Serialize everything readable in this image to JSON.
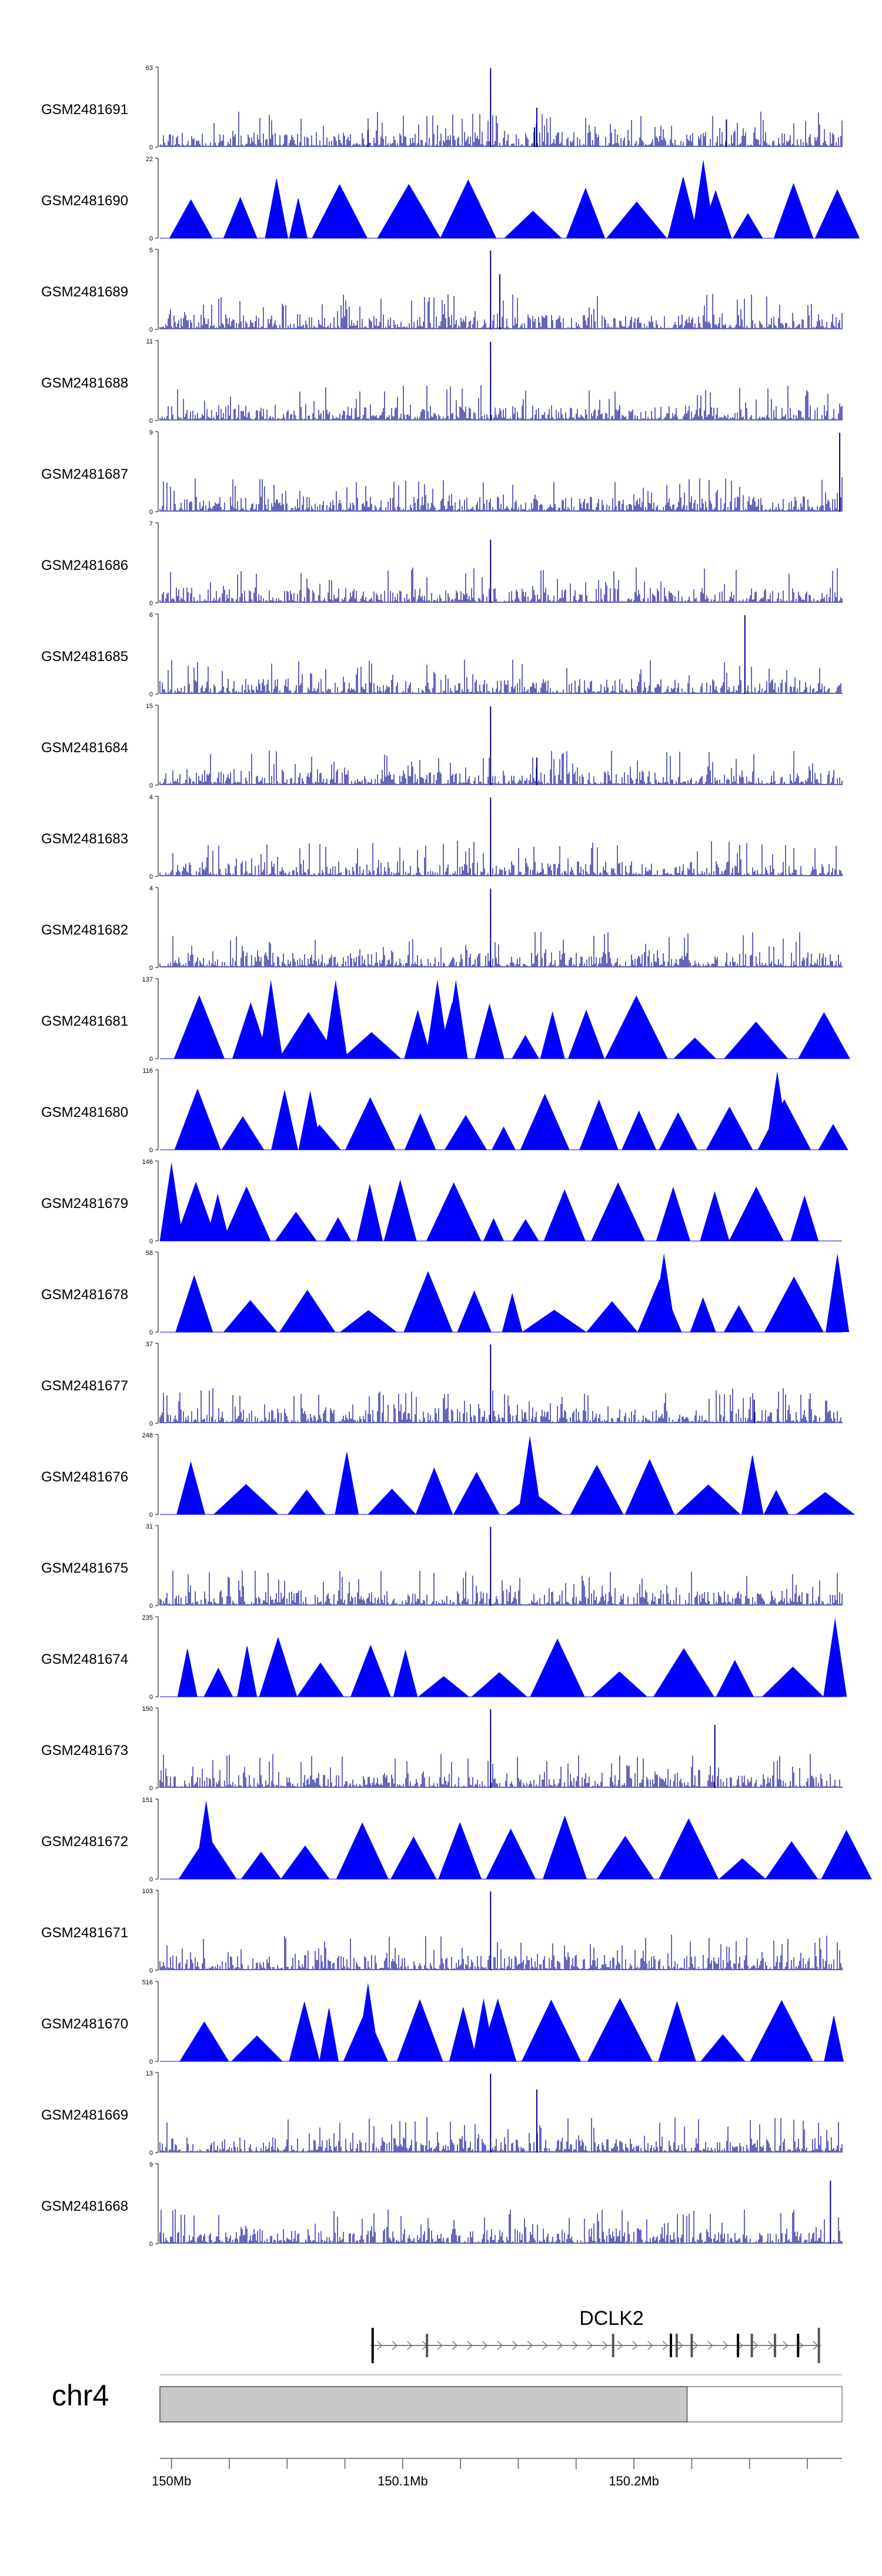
{
  "chart_data": {
    "type": "area",
    "title": "",
    "chromosome": "chr4",
    "gene": "DCLK2",
    "xlim": [
      149.97,
      150.265
    ],
    "x_ticks": [
      {
        "value": 149.975,
        "label": "150Mb"
      },
      {
        "value": 150.0,
        "label": ""
      },
      {
        "value": 150.025,
        "label": ""
      },
      {
        "value": 150.05,
        "label": ""
      },
      {
        "value": 150.075,
        "label": "150.1Mb"
      },
      {
        "value": 150.1,
        "label": ""
      },
      {
        "value": 150.125,
        "label": ""
      },
      {
        "value": 150.15,
        "label": ""
      },
      {
        "value": 150.175,
        "label": "150.2Mb"
      },
      {
        "value": 150.2,
        "label": ""
      },
      {
        "value": 150.225,
        "label": ""
      },
      {
        "value": 150.25,
        "label": ""
      }
    ],
    "ideogram": {
      "range": [
        149.97,
        150.265
      ],
      "highlight": [
        149.97,
        150.198
      ]
    },
    "gene_model": {
      "start": 150.061,
      "end": 150.256,
      "strand": "+",
      "exons": [
        150.062,
        150.0855,
        150.166,
        150.191,
        150.1935,
        150.2,
        150.22,
        150.226,
        150.236,
        150.246,
        150.255
      ]
    },
    "series": [
      {
        "name": "GSM2481691",
        "ymax": 63,
        "style": "dense",
        "peaks": [
          [
            150.113,
            1.0
          ],
          [
            150.06,
            0.22
          ],
          [
            150.133,
            0.5
          ],
          [
            150.132,
            0.25
          ],
          [
            150.215,
            0.35
          ]
        ]
      },
      {
        "name": "GSM2481690",
        "ymax": 22,
        "style": "tri",
        "peaks": [
          [
            150.205,
            1.0
          ],
          [
            150.245,
            0.6
          ]
        ]
      },
      {
        "name": "GSM2481689",
        "ymax": 5,
        "style": "dense",
        "peaks": [
          [
            150.113,
            1.0
          ],
          [
            150.117,
            0.7
          ]
        ]
      },
      {
        "name": "GSM2481688",
        "ymax": 11,
        "style": "dense",
        "peaks": [
          [
            150.113,
            1.0
          ]
        ]
      },
      {
        "name": "GSM2481687",
        "ymax": 9,
        "style": "dense",
        "peaks": [
          [
            150.264,
            1.0
          ]
        ]
      },
      {
        "name": "GSM2481686",
        "ymax": 7,
        "style": "dense",
        "peaks": [
          [
            150.113,
            0.8
          ]
        ]
      },
      {
        "name": "GSM2481685",
        "ymax": 6,
        "style": "dense",
        "peaks": [
          [
            150.223,
            1.0
          ]
        ]
      },
      {
        "name": "GSM2481684",
        "ymax": 15,
        "style": "dense",
        "peaks": [
          [
            150.113,
            1.0
          ],
          [
            150.133,
            0.35
          ]
        ]
      },
      {
        "name": "GSM2481683",
        "ymax": 4,
        "style": "dense",
        "peaks": [
          [
            150.113,
            1.0
          ]
        ]
      },
      {
        "name": "GSM2481682",
        "ymax": 4,
        "style": "dense",
        "peaks": [
          [
            150.113,
            1.0
          ]
        ]
      },
      {
        "name": "GSM2481681",
        "ymax": 137,
        "style": "tri",
        "peaks": [
          [
            150.018,
            1.0
          ],
          [
            150.046,
            1.0
          ],
          [
            150.098,
            1.0
          ],
          [
            150.09,
            1.0
          ]
        ]
      },
      {
        "name": "GSM2481680",
        "ymax": 116,
        "style": "tri",
        "peaks": [
          [
            150.035,
            0.75
          ],
          [
            150.237,
            1.0
          ]
        ]
      },
      {
        "name": "GSM2481679",
        "ymax": 146,
        "style": "tri",
        "peaks": [
          [
            149.975,
            1.0
          ],
          [
            149.995,
            0.6
          ]
        ]
      },
      {
        "name": "GSM2481678",
        "ymax": 58,
        "style": "tri",
        "peaks": [
          [
            150.188,
            1.0
          ],
          [
            150.263,
            1.0
          ]
        ]
      },
      {
        "name": "GSM2481677",
        "ymax": 37,
        "style": "dense",
        "peaks": [
          [
            150.113,
            1.0
          ],
          [
            150.227,
            0.3
          ]
        ]
      },
      {
        "name": "GSM2481676",
        "ymax": 248,
        "style": "tri",
        "peaks": [
          [
            150.13,
            1.0
          ]
        ]
      },
      {
        "name": "GSM2481675",
        "ymax": 31,
        "style": "dense",
        "peaks": [
          [
            150.113,
            1.0
          ]
        ]
      },
      {
        "name": "GSM2481674",
        "ymax": 235,
        "style": "tri",
        "peaks": [
          [
            150.262,
            1.0
          ]
        ]
      },
      {
        "name": "GSM2481673",
        "ymax": 150,
        "style": "dense",
        "peaks": [
          [
            150.113,
            1.0
          ],
          [
            150.21,
            0.8
          ]
        ]
      },
      {
        "name": "GSM2481672",
        "ymax": 151,
        "style": "tri",
        "peaks": [
          [
            149.99,
            1.0
          ]
        ]
      },
      {
        "name": "GSM2481671",
        "ymax": 103,
        "style": "dense",
        "peaks": [
          [
            150.113,
            1.0
          ]
        ]
      },
      {
        "name": "GSM2481670",
        "ymax": 516,
        "style": "tri",
        "peaks": [
          [
            150.06,
            1.0
          ],
          [
            150.11,
            0.8
          ]
        ]
      },
      {
        "name": "GSM2481669",
        "ymax": 13,
        "style": "dense",
        "peaks": [
          [
            150.113,
            1.0
          ],
          [
            150.133,
            0.8
          ]
        ]
      },
      {
        "name": "GSM2481668",
        "ymax": 9,
        "style": "dense",
        "peaks": [
          [
            150.26,
            0.8
          ]
        ]
      }
    ],
    "xlabel": "",
    "ylabel": "",
    "grid": false,
    "legend": "none"
  },
  "colors": {
    "signal": "#0000ff",
    "signal_dark": "#00008b",
    "ideogram": "#c8c8c8"
  }
}
